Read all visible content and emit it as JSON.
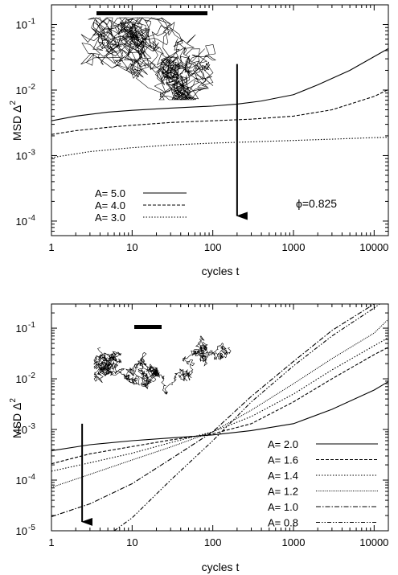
{
  "chart_data": [
    {
      "type": "line",
      "xscale": "log",
      "yscale": "log",
      "xlim": [
        1,
        15000
      ],
      "ylim": [
        6e-05,
        0.2
      ],
      "xlabel": "cycles t",
      "ylabel": "MSD Δ",
      "ylabel_sup": "2",
      "xticks": [
        1,
        10,
        100,
        1000,
        10000
      ],
      "xtick_labels": [
        "1",
        "10",
        "100",
        "1000",
        "10000"
      ],
      "yticks": [
        0.0001,
        0.001,
        0.01,
        0.1
      ],
      "ytick_labels": [
        {
          "base": "10",
          "exp": "-4"
        },
        {
          "base": "10",
          "exp": "-3"
        },
        {
          "base": "10",
          "exp": "-2"
        },
        {
          "base": "10",
          "exp": "-1"
        }
      ],
      "legend_position": "bottom-left",
      "annotation": {
        "symbol": "ϕ",
        "text": "=0.825"
      },
      "arrow": {
        "x": 200,
        "y_from": 0.025,
        "y_to": 0.00012
      },
      "series": [
        {
          "name": "A= 5.0",
          "dash": "solid",
          "x": [
            1,
            2,
            5,
            10,
            30,
            100,
            200,
            400,
            1000,
            2000,
            5000,
            15000
          ],
          "y": [
            0.0034,
            0.004,
            0.0046,
            0.0049,
            0.0053,
            0.0057,
            0.0061,
            0.0068,
            0.0085,
            0.012,
            0.02,
            0.043
          ]
        },
        {
          "name": "A= 4.0",
          "dash": "dashed",
          "x": [
            1,
            2,
            5,
            10,
            30,
            100,
            300,
            1000,
            3000,
            10000,
            15000
          ],
          "y": [
            0.0021,
            0.0024,
            0.0027,
            0.0029,
            0.0032,
            0.0034,
            0.0036,
            0.004,
            0.005,
            0.008,
            0.0102
          ]
        },
        {
          "name": "A= 3.0",
          "dash": "dotted",
          "x": [
            1,
            3,
            10,
            30,
            100,
            300,
            1000,
            3000,
            10000,
            15000
          ],
          "y": [
            0.00093,
            0.00115,
            0.00132,
            0.00145,
            0.00155,
            0.00162,
            0.0017,
            0.00178,
            0.00188,
            0.0019
          ]
        }
      ]
    },
    {
      "type": "line",
      "xscale": "log",
      "yscale": "log",
      "xlim": [
        1,
        15000
      ],
      "ylim": [
        1e-05,
        0.3
      ],
      "xlabel": "cycles t",
      "ylabel": "MSD Δ",
      "ylabel_sup": "2",
      "xticks": [
        1,
        10,
        100,
        1000,
        10000
      ],
      "xtick_labels": [
        "1",
        "10",
        "100",
        "1000",
        "10000"
      ],
      "yticks": [
        1e-05,
        0.0001,
        0.001,
        0.01,
        0.1
      ],
      "ytick_labels": [
        {
          "base": "10",
          "exp": "-5"
        },
        {
          "base": "10",
          "exp": "-4"
        },
        {
          "base": "10",
          "exp": "-3"
        },
        {
          "base": "10",
          "exp": "-2"
        },
        {
          "base": "10",
          "exp": "-1"
        }
      ],
      "legend_position": "bottom-right",
      "arrow": {
        "x": 2.4,
        "y_from": 0.0013,
        "y_to": 1.5e-05
      },
      "series": [
        {
          "name": "A= 2.0",
          "dash": "solid",
          "x": [
            1,
            3,
            10,
            30,
            100,
            300,
            1000,
            3000,
            10000,
            15000
          ],
          "y": [
            0.00038,
            0.0005,
            0.0006,
            0.00068,
            0.00078,
            0.00095,
            0.0013,
            0.0025,
            0.006,
            0.0088
          ]
        },
        {
          "name": "A= 1.6",
          "dash": "dashed",
          "x": [
            1,
            3,
            10,
            30,
            100,
            300,
            1000,
            3000,
            10000,
            15000
          ],
          "y": [
            0.00021,
            0.00033,
            0.00046,
            0.00062,
            0.00082,
            0.0013,
            0.0035,
            0.01,
            0.03,
            0.042
          ]
        },
        {
          "name": "A= 1.4",
          "dash": "dotted",
          "x": [
            1,
            3,
            10,
            30,
            100,
            300,
            1000,
            3000,
            10000,
            15000
          ],
          "y": [
            0.00015,
            0.00022,
            0.00034,
            0.00055,
            0.0009,
            0.0018,
            0.005,
            0.015,
            0.045,
            0.065
          ]
        },
        {
          "name": "A= 1.2",
          "dash": "fine-dot",
          "x": [
            1,
            3,
            10,
            30,
            100,
            300,
            1000,
            3000,
            10000,
            15000
          ],
          "y": [
            7.2e-05,
            0.00013,
            0.00025,
            0.00045,
            0.0009,
            0.0024,
            0.008,
            0.025,
            0.08,
            0.15
          ]
        },
        {
          "name": "A= 1.0",
          "dash": "dash-dot",
          "x": [
            1,
            3,
            10,
            30,
            100,
            300,
            1000,
            3000,
            10000,
            15000
          ],
          "y": [
            1.9e-05,
            3.4e-05,
            8.5e-05,
            0.00026,
            0.0009,
            0.0045,
            0.022,
            0.09,
            0.3,
            0.45
          ]
        },
        {
          "name": "A= 0.8",
          "dash": "dash-dot-dot",
          "x": [
            6,
            10,
            30,
            100,
            300,
            1000,
            3000,
            10000,
            15000
          ],
          "y": [
            1e-05,
            1.8e-05,
            0.0001,
            0.0006,
            0.0035,
            0.018,
            0.07,
            0.25,
            0.4
          ]
        }
      ]
    }
  ]
}
